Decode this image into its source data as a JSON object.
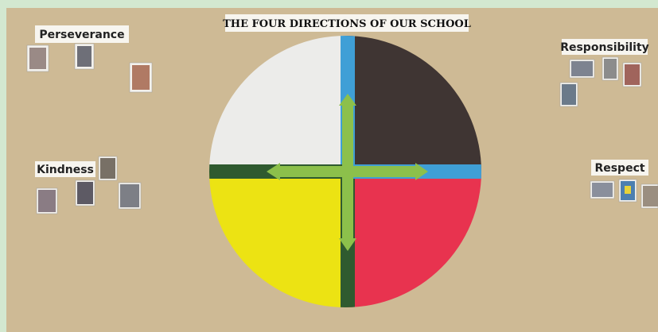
{
  "board": {
    "title": "THE FOUR DIRECTIONS OF OUR SCHOOL",
    "labels": [
      "Perseverance",
      "Responsibility",
      "Kindness",
      "Respect"
    ]
  }
}
